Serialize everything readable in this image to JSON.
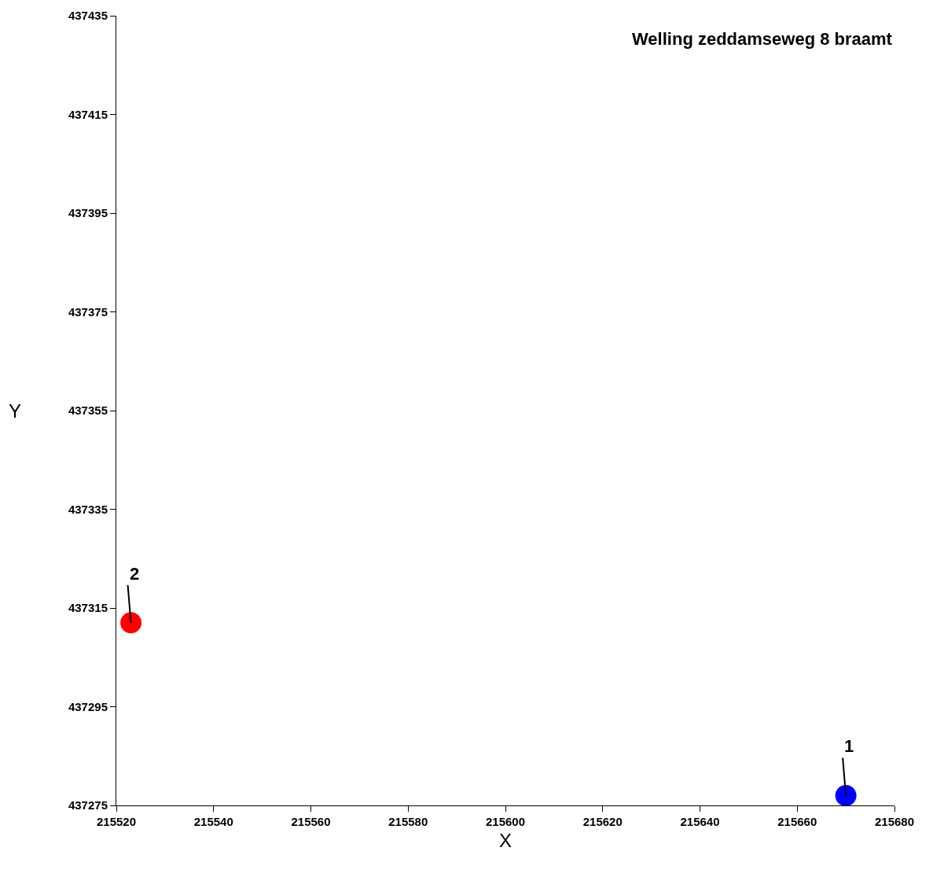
{
  "chart_data": {
    "type": "scatter",
    "title": "Welling zeddamseweg 8 braamt",
    "xlabel": "X",
    "ylabel": "Y",
    "series": [
      {
        "color": "#0000ff",
        "x": [
          215670
        ],
        "values": [
          437277
        ]
      },
      {
        "color": "#ff0000",
        "x": [
          215523
        ],
        "values": [
          437312
        ]
      }
    ],
    "annotations": [
      {
        "text": "1",
        "x": 215670,
        "y": 437277
      },
      {
        "text": "2",
        "x": 215523,
        "y": 437312
      }
    ],
    "xlim": [
      215520,
      215680
    ],
    "xticks": [
      215520,
      215540,
      215560,
      215580,
      215600,
      215620,
      215640,
      215660,
      215680
    ],
    "ylim": [
      437275,
      437435
    ],
    "yticks": [
      437275,
      437295,
      437315,
      437335,
      437355,
      437375,
      437395,
      437415,
      437435
    ],
    "marker": "circle"
  }
}
